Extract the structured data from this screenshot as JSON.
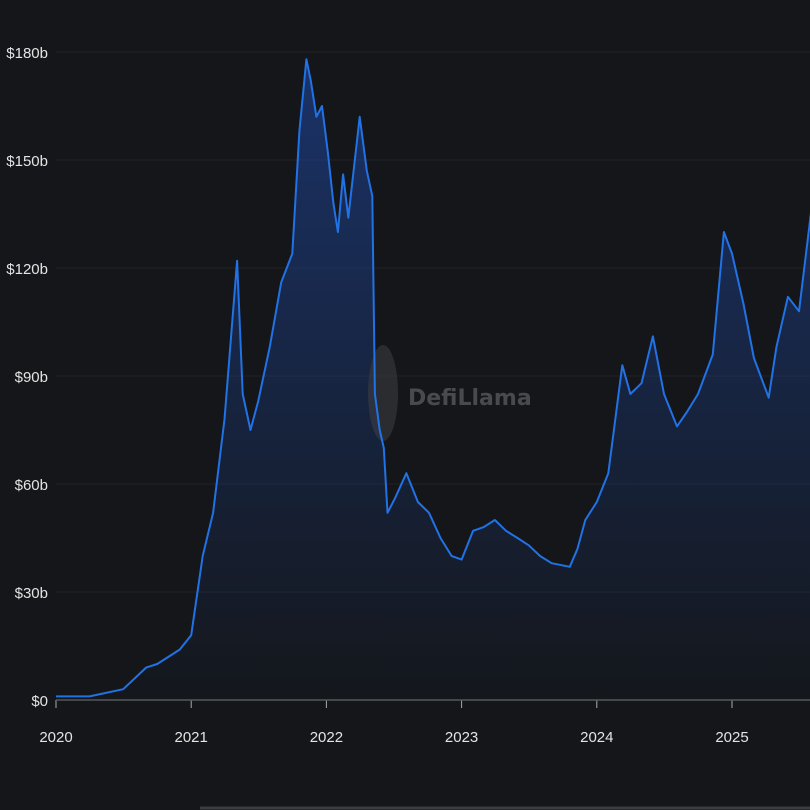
{
  "watermark": "DefiLlama",
  "chart_data": {
    "type": "area",
    "title": "",
    "xlabel": "",
    "ylabel": "",
    "ylim": [
      0,
      180
    ],
    "y_ticks": [
      "$0",
      "$30b",
      "$60b",
      "$90b",
      "$120b",
      "$150b",
      "$180b"
    ],
    "y_tick_values": [
      0,
      30,
      60,
      90,
      120,
      150,
      180
    ],
    "x_ticks": [
      "2020",
      "2021",
      "2022",
      "2023",
      "2024",
      "2025"
    ],
    "grid": true,
    "colors": {
      "line": "#2172e5",
      "background": "#141619"
    },
    "series": [
      {
        "points": [
          [
            "2020-01-01",
            1
          ],
          [
            "2020-04-01",
            1
          ],
          [
            "2020-07-01",
            3
          ],
          [
            "2020-09-01",
            9
          ],
          [
            "2020-10-01",
            10
          ],
          [
            "2020-12-01",
            14
          ],
          [
            "2021-01-01",
            18
          ],
          [
            "2021-02-01",
            40
          ],
          [
            "2021-03-01",
            52
          ],
          [
            "2021-04-01",
            78
          ],
          [
            "2021-05-05",
            122
          ],
          [
            "2021-05-20",
            85
          ],
          [
            "2021-06-10",
            75
          ],
          [
            "2021-07-01",
            83
          ],
          [
            "2021-08-01",
            98
          ],
          [
            "2021-09-01",
            116
          ],
          [
            "2021-10-01",
            124
          ],
          [
            "2021-10-20",
            158
          ],
          [
            "2021-11-08",
            178
          ],
          [
            "2021-11-20",
            172
          ],
          [
            "2021-12-05",
            162
          ],
          [
            "2021-12-20",
            165
          ],
          [
            "2022-01-05",
            152
          ],
          [
            "2022-01-20",
            138
          ],
          [
            "2022-02-01",
            130
          ],
          [
            "2022-02-15",
            146
          ],
          [
            "2022-03-01",
            134
          ],
          [
            "2022-04-01",
            162
          ],
          [
            "2022-04-20",
            147
          ],
          [
            "2022-05-05",
            140
          ],
          [
            "2022-05-12",
            85
          ],
          [
            "2022-05-25",
            75
          ],
          [
            "2022-06-05",
            70
          ],
          [
            "2022-06-15",
            52
          ],
          [
            "2022-07-05",
            56
          ],
          [
            "2022-08-05",
            63
          ],
          [
            "2022-09-05",
            55
          ],
          [
            "2022-10-05",
            52
          ],
          [
            "2022-11-05",
            45
          ],
          [
            "2022-12-05",
            40
          ],
          [
            "2023-01-01",
            39
          ],
          [
            "2023-02-01",
            47
          ],
          [
            "2023-03-01",
            48
          ],
          [
            "2023-04-01",
            50
          ],
          [
            "2023-05-01",
            47
          ],
          [
            "2023-06-01",
            45
          ],
          [
            "2023-07-01",
            43
          ],
          [
            "2023-08-01",
            40
          ],
          [
            "2023-09-01",
            38
          ],
          [
            "2023-10-20",
            37
          ],
          [
            "2023-11-10",
            42
          ],
          [
            "2023-12-01",
            50
          ],
          [
            "2024-01-01",
            55
          ],
          [
            "2024-02-01",
            63
          ],
          [
            "2024-03-10",
            93
          ],
          [
            "2024-04-01",
            85
          ],
          [
            "2024-05-01",
            88
          ],
          [
            "2024-06-01",
            101
          ],
          [
            "2024-07-01",
            85
          ],
          [
            "2024-08-05",
            76
          ],
          [
            "2024-09-01",
            80
          ],
          [
            "2024-10-01",
            85
          ],
          [
            "2024-11-10",
            96
          ],
          [
            "2024-12-10",
            130
          ],
          [
            "2025-01-01",
            124
          ],
          [
            "2025-02-01",
            110
          ],
          [
            "2025-03-01",
            95
          ],
          [
            "2025-04-10",
            84
          ],
          [
            "2025-05-01",
            98
          ],
          [
            "2025-06-01",
            112
          ],
          [
            "2025-07-01",
            108
          ],
          [
            "2025-08-10",
            142
          ]
        ]
      }
    ]
  }
}
